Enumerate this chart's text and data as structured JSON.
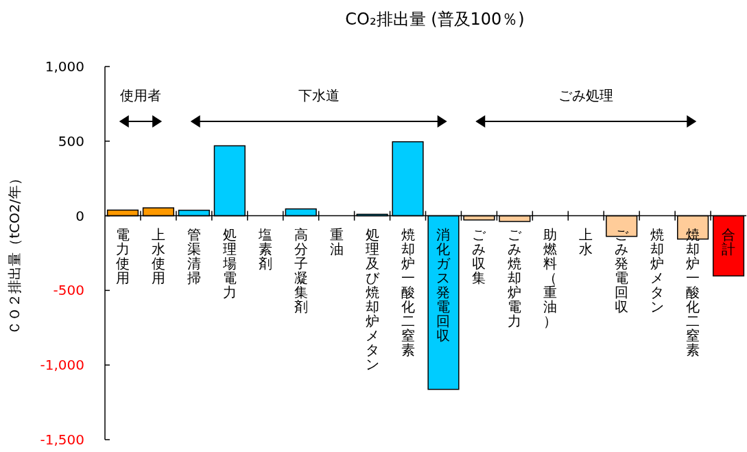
{
  "chart_data": {
    "type": "bar",
    "title": "CO₂排出量 (普及100％)",
    "ylabel": "ＣＯ２排出量（tCO2/年）",
    "categories": [
      "電力使用",
      "上水使用",
      "管渠清掃",
      "処理場電力",
      "塩素剤",
      "高分子凝集剤",
      "重油",
      "処理及び焼却炉メタン",
      "焼却炉一酸化二窒素",
      "消化ガス発電回収",
      "ごみ収集",
      "ごみ焼却炉電力",
      "助燃料（重油）",
      "上水",
      "ごみ発電回収",
      "焼却炉メタン",
      "焼却炉一酸化二窒素",
      "合計"
    ],
    "values": [
      38,
      53,
      37,
      469,
      0,
      46,
      0,
      10,
      496,
      -1163,
      -28,
      -38,
      0,
      0,
      -138,
      0,
      -156,
      -403
    ],
    "colors": [
      "#ff9900",
      "#ff9900",
      "#00ccff",
      "#00ccff",
      "#00ccff",
      "#00ccff",
      "#00ccff",
      "#00ccff",
      "#00ccff",
      "#00ccff",
      "#ffcc99",
      "#ffcc99",
      "#ffcc99",
      "#ffcc99",
      "#ffcc99",
      "#ffcc99",
      "#ffcc99",
      "#ff0000"
    ],
    "ylim": [
      -1500,
      1000
    ],
    "yticks": [
      {
        "value": -1500,
        "label": "-1,500"
      },
      {
        "value": -1000,
        "label": "-1,000"
      },
      {
        "value": -500,
        "label": "-500"
      },
      0,
      500,
      {
        "value": 1000,
        "label": "1,000"
      }
    ],
    "annotations": [
      "使用者",
      "下水道",
      "ごみ処理"
    ],
    "grid": false
  }
}
